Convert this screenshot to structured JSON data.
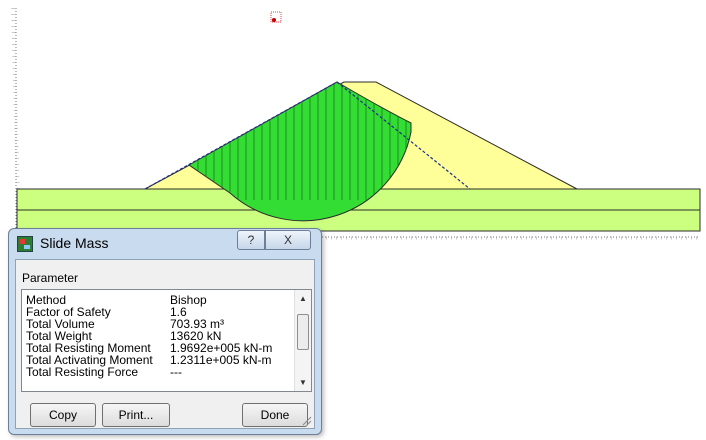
{
  "canvas": {
    "colors": {
      "foundation": "#ccff80",
      "embankment": "#ffff99",
      "slide_mass": "#33dd33",
      "hatch": "#1a7a1a",
      "outline": "#2c2c2c",
      "phreatic": "#1e2d8c",
      "ruler": "#777777"
    }
  },
  "dialog": {
    "title": "Slide Mass",
    "help_label": "?",
    "close_label": "X",
    "group_label": "Parameter",
    "rows": [
      {
        "key": "Method",
        "value": "Bishop"
      },
      {
        "key": "Factor of Safety",
        "value": "1.6"
      },
      {
        "key": "Total Volume",
        "value": "703.93 m³"
      },
      {
        "key": "Total Weight",
        "value": "13620 kN"
      },
      {
        "key": "Total Resisting Moment",
        "value": "1.9692e+005 kN-m"
      },
      {
        "key": "Total Activating Moment",
        "value": "1.2311e+005 kN-m"
      },
      {
        "key": "Total Resisting Force",
        "value": "---"
      }
    ],
    "buttons": {
      "copy": "Copy",
      "print": "Print...",
      "done": "Done"
    }
  }
}
